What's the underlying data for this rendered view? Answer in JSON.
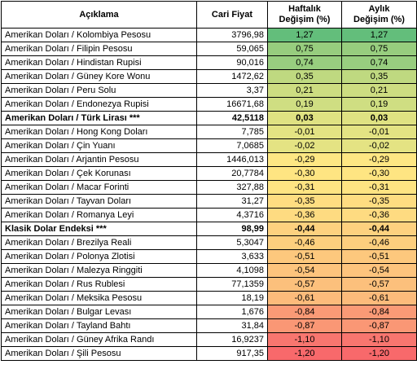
{
  "headers": {
    "description": "Açıklama",
    "price": "Cari Fiyat",
    "weekly_line1": "Haftalık",
    "weekly_line2": "Değişim (%)",
    "monthly_line1": "Aylık",
    "monthly_line2": "Değişim (%)"
  },
  "rows": [
    {
      "description": "Amerikan Doları / Kolombiya Pesosu",
      "price": "3796,98",
      "weekly": "1,27",
      "monthly": "1,27",
      "color": "#63be7b",
      "bold": false
    },
    {
      "description": "Amerikan Doları / Filipin Pesosu",
      "price": "59,065",
      "weekly": "0,75",
      "monthly": "0,75",
      "color": "#97cd7e",
      "bold": false
    },
    {
      "description": "Amerikan Doları / Hindistan Rupisi",
      "price": "90,016",
      "weekly": "0,74",
      "monthly": "0,74",
      "color": "#98ce7f",
      "bold": false
    },
    {
      "description": "Amerikan Doları / Güney Kore Wonu",
      "price": "1472,62",
      "weekly": "0,35",
      "monthly": "0,35",
      "color": "#bfd980",
      "bold": false
    },
    {
      "description": "Amerikan Doları / Peru Solu",
      "price": "3,37",
      "weekly": "0,21",
      "monthly": "0,21",
      "color": "#cddd81",
      "bold": false
    },
    {
      "description": "Amerikan Doları / Endonezya Rupisi",
      "price": "16671,68",
      "weekly": "0,19",
      "monthly": "0,19",
      "color": "#cfde82",
      "bold": false
    },
    {
      "description": "Amerikan Doları / Türk Lirası ***",
      "price": "42,5118",
      "weekly": "0,03",
      "monthly": "0,03",
      "color": "#dfe282",
      "bold": true
    },
    {
      "description": "Amerikan Doları / Hong Kong Doları",
      "price": "7,785",
      "weekly": "-0,01",
      "monthly": "-0,01",
      "color": "#e3e383",
      "bold": false
    },
    {
      "description": "Amerikan Doları / Çin Yuanı",
      "price": "7,0685",
      "weekly": "-0,02",
      "monthly": "-0,02",
      "color": "#e4e383",
      "bold": false
    },
    {
      "description": "Amerikan Doları / Arjantin Pesosu",
      "price": "1446,013",
      "weekly": "-0,29",
      "monthly": "-0,29",
      "color": "#fee783",
      "bold": false
    },
    {
      "description": "Amerikan Doları / Çek Korunası",
      "price": "20,7784",
      "weekly": "-0,30",
      "monthly": "-0,30",
      "color": "#fee582",
      "bold": false
    },
    {
      "description": "Amerikan Doları / Macar Forinti",
      "price": "327,88",
      "weekly": "-0,31",
      "monthly": "-0,31",
      "color": "#fee482",
      "bold": false
    },
    {
      "description": "Amerikan Doları / Tayvan Doları",
      "price": "31,27",
      "weekly": "-0,35",
      "monthly": "-0,35",
      "color": "#fedd81",
      "bold": false
    },
    {
      "description": "Amerikan Doları / Romanya Leyi",
      "price": "4,3716",
      "weekly": "-0,36",
      "monthly": "-0,36",
      "color": "#fedb81",
      "bold": false
    },
    {
      "description": "Klasik Dolar Endeksi ***",
      "price": "98,99",
      "weekly": "-0,44",
      "monthly": "-0,44",
      "color": "#fdd17f",
      "bold": true
    },
    {
      "description": "Amerikan Doları / Brezilya Reali",
      "price": "5,3047",
      "weekly": "-0,46",
      "monthly": "-0,46",
      "color": "#fdcf7e",
      "bold": false
    },
    {
      "description": "Amerikan Doları / Polonya Zlotisi",
      "price": "3,633",
      "weekly": "-0,51",
      "monthly": "-0,51",
      "color": "#fdc87d",
      "bold": false
    },
    {
      "description": "Amerikan Doları / Malezya Ringgiti",
      "price": "4,1098",
      "weekly": "-0,54",
      "monthly": "-0,54",
      "color": "#fdc47d",
      "bold": false
    },
    {
      "description": "Amerikan Doları / Rus Rublesi",
      "price": "77,1359",
      "weekly": "-0,57",
      "monthly": "-0,57",
      "color": "#fcc07c",
      "bold": false
    },
    {
      "description": "Amerikan Doları / Meksika Pesosu",
      "price": "18,19",
      "weekly": "-0,61",
      "monthly": "-0,61",
      "color": "#fcbb7b",
      "bold": false
    },
    {
      "description": "Amerikan Doları / Bulgar Levası",
      "price": "1,676",
      "weekly": "-0,84",
      "monthly": "-0,84",
      "color": "#fa9a76",
      "bold": false
    },
    {
      "description": "Amerikan Doları / Tayland Bahtı",
      "price": "31,84",
      "weekly": "-0,87",
      "monthly": "-0,87",
      "color": "#fa9775",
      "bold": false
    },
    {
      "description": "Amerikan Doları / Güney Afrika Randı",
      "price": "16,9237",
      "weekly": "-1,10",
      "monthly": "-1,10",
      "color": "#f8766f",
      "bold": false
    },
    {
      "description": "Amerikan Doları / Şili Pesosu",
      "price": "917,35",
      "weekly": "-1,20",
      "monthly": "-1,20",
      "color": "#f8696b",
      "bold": false
    }
  ]
}
